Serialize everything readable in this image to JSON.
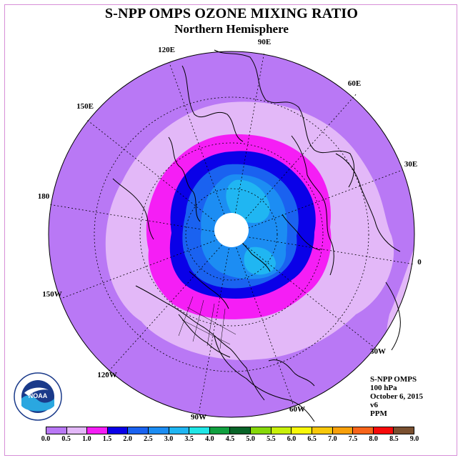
{
  "title": "S-NPP OMPS OZONE MIXING RATIO",
  "subtitle": "Northern Hemisphere",
  "longitude_labels": [
    "90E",
    "60E",
    "30E",
    "0",
    "30W",
    "60W",
    "90W",
    "120W",
    "150W",
    "180",
    "150E",
    "120E"
  ],
  "info": {
    "instrument": "S-NPP OMPS",
    "pressure": "100 hPa",
    "date": "October 6, 2015",
    "version": "v6",
    "units": "PPM"
  },
  "logo": {
    "icon": "noaa-logo",
    "text": "NOAA"
  },
  "colorbar": {
    "ticks": [
      "0.0",
      "0.5",
      "1.0",
      "1.5",
      "2.0",
      "2.5",
      "3.0",
      "3.5",
      "4.0",
      "4.5",
      "5.0",
      "5.5",
      "6.0",
      "6.5",
      "7.0",
      "7.5",
      "8.0",
      "8.5",
      "9.0"
    ],
    "colors": [
      "#b978f5",
      "#e3b8f8",
      "#f51ef5",
      "#0a00e8",
      "#1a62f0",
      "#1c8df3",
      "#20b6f2",
      "#20e6e6",
      "#10a040",
      "#086428",
      "#86d80a",
      "#c8f00a",
      "#f8f80a",
      "#f8c80a",
      "#f8a00a",
      "#f8641a",
      "#f80a0a",
      "#7a5030"
    ]
  }
}
